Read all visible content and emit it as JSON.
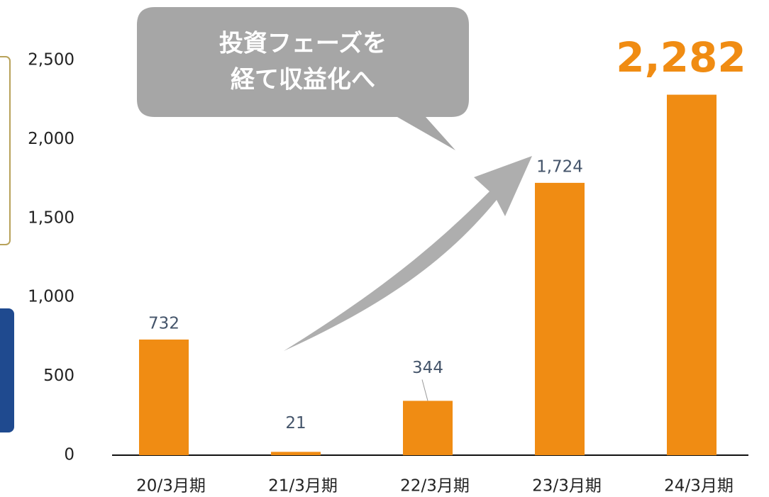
{
  "chart_data": {
    "type": "bar",
    "annotation": [
      "投資フェーズを",
      "経て収益化へ"
    ],
    "categories": [
      "20/3月期",
      "21/3月期",
      "22/3月期",
      "23/3月期",
      "24/3月期"
    ],
    "values": [
      732,
      21,
      344,
      1724,
      2282
    ],
    "value_labels": [
      "732",
      "21",
      "344",
      "1,724",
      "2,282"
    ],
    "color": "#f08c13",
    "ylim": [
      0,
      2500
    ],
    "yticks": [
      0,
      500,
      {
        "value": 1000,
        "label": "1,000"
      },
      {
        "value": 1500,
        "label": "1,500"
      },
      {
        "value": 2000,
        "label": "2,000"
      },
      {
        "value": 2500,
        "label": "2,500"
      }
    ],
    "grid": false
  }
}
